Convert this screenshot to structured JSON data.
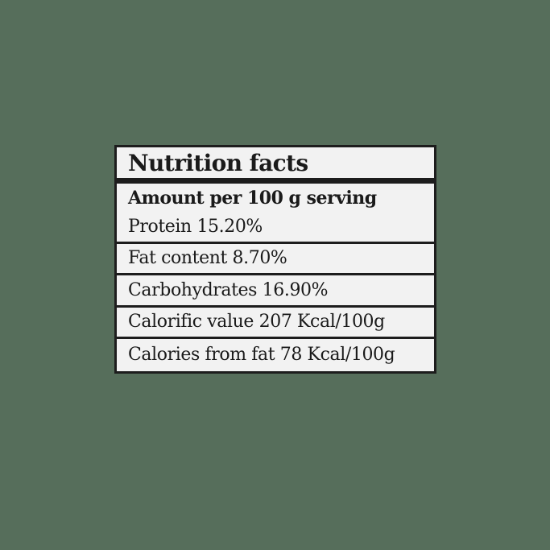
{
  "label": {
    "title": "Nutrition facts",
    "subheading": "Amount per 100 g serving",
    "rows": [
      {
        "name": "Protein",
        "value": "15.20%"
      },
      {
        "name": "Fat content",
        "value": "8.70%"
      },
      {
        "name": "Carbohydrates",
        "value": "16.90%"
      },
      {
        "name": "Calorific value",
        "value": "207 Kcal/100g"
      },
      {
        "name": "Calories from fat",
        "value": "78 Kcal/100g"
      }
    ]
  },
  "colors": {
    "background": "#566e5b",
    "panel": "#f2f2f2",
    "border": "#1d1d1d"
  }
}
